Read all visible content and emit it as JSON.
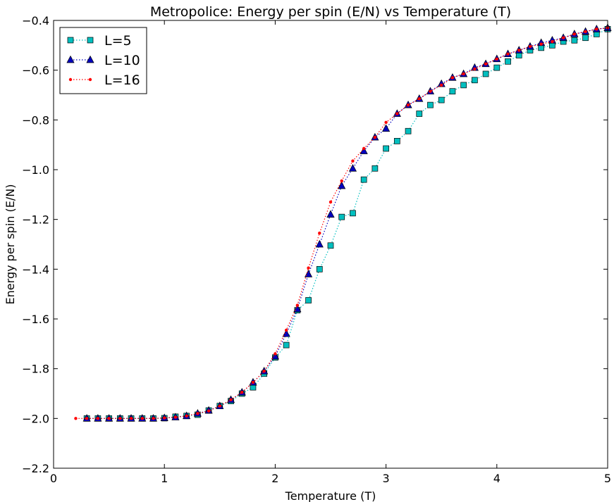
{
  "chart_data": {
    "type": "line",
    "title": "Metropolice: Energy per spin (E/N) vs Temperature (T)",
    "xlabel": "Temperature (T)",
    "ylabel": "Energy per spin (E/N)",
    "xlim": [
      0,
      5
    ],
    "ylim": [
      -2.2,
      -0.4
    ],
    "xticks": [
      0,
      1,
      2,
      3,
      4,
      5
    ],
    "yticks": [
      -2.2,
      -2.0,
      -1.8,
      -1.6,
      -1.4,
      -1.2,
      -1.0,
      -0.8,
      -0.6,
      -0.4
    ],
    "xtick_labels": [
      "0",
      "1",
      "2",
      "3",
      "4",
      "5"
    ],
    "ytick_labels": [
      "−2.2",
      "−2.0",
      "−1.8",
      "−1.6",
      "−1.4",
      "−1.2",
      "−1.0",
      "−0.8",
      "−0.6",
      "−0.4"
    ],
    "grid": false,
    "legend_position": "top-left",
    "series": [
      {
        "name": "L=5",
        "marker": "square",
        "color": "#00bfbf",
        "x": [
          0.3,
          0.4,
          0.5,
          0.6,
          0.7,
          0.8,
          0.9,
          1.0,
          1.1,
          1.2,
          1.3,
          1.4,
          1.5,
          1.6,
          1.7,
          1.8,
          1.9,
          2.0,
          2.1,
          2.2,
          2.3,
          2.4,
          2.5,
          2.6,
          2.7,
          2.8,
          2.9,
          3.0,
          3.1,
          3.2,
          3.3,
          3.4,
          3.5,
          3.6,
          3.7,
          3.8,
          3.9,
          4.0,
          4.1,
          4.2,
          4.3,
          4.4,
          4.5,
          4.6,
          4.7,
          4.8,
          4.9,
          5.0
        ],
        "y": [
          -2.0,
          -2.0,
          -2.0,
          -2.0,
          -2.0,
          -2.0,
          -2.0,
          -1.999,
          -1.993,
          -1.99,
          -1.985,
          -1.968,
          -1.95,
          -1.93,
          -1.9,
          -1.875,
          -1.82,
          -1.755,
          -1.705,
          -1.565,
          -1.525,
          -1.4,
          -1.305,
          -1.19,
          -1.175,
          -1.04,
          -0.995,
          -0.915,
          -0.885,
          -0.845,
          -0.775,
          -0.74,
          -0.72,
          -0.685,
          -0.66,
          -0.64,
          -0.615,
          -0.59,
          -0.565,
          -0.54,
          -0.52,
          -0.51,
          -0.5,
          -0.485,
          -0.48,
          -0.47,
          -0.455,
          -0.435
        ]
      },
      {
        "name": "L=10",
        "marker": "triangle",
        "color": "#0000bf",
        "x": [
          0.3,
          0.4,
          0.5,
          0.6,
          0.7,
          0.8,
          0.9,
          1.0,
          1.1,
          1.2,
          1.3,
          1.4,
          1.5,
          1.6,
          1.7,
          1.8,
          1.9,
          2.0,
          2.1,
          2.2,
          2.3,
          2.4,
          2.5,
          2.6,
          2.7,
          2.8,
          2.9,
          3.0,
          3.1,
          3.2,
          3.3,
          3.4,
          3.5,
          3.6,
          3.7,
          3.8,
          3.9,
          4.0,
          4.1,
          4.2,
          4.3,
          4.4,
          4.5,
          4.6,
          4.7,
          4.8,
          4.9,
          5.0
        ],
        "y": [
          -2.0,
          -2.0,
          -2.0,
          -2.0,
          -2.0,
          -2.0,
          -2.0,
          -1.998,
          -1.995,
          -1.99,
          -1.98,
          -1.968,
          -1.95,
          -1.925,
          -1.895,
          -1.855,
          -1.81,
          -1.75,
          -1.66,
          -1.56,
          -1.42,
          -1.3,
          -1.18,
          -1.065,
          -0.995,
          -0.925,
          -0.87,
          -0.835,
          -0.775,
          -0.74,
          -0.715,
          -0.685,
          -0.655,
          -0.63,
          -0.615,
          -0.59,
          -0.575,
          -0.555,
          -0.535,
          -0.52,
          -0.505,
          -0.49,
          -0.48,
          -0.47,
          -0.455,
          -0.445,
          -0.435,
          -0.43
        ]
      },
      {
        "name": "L=16",
        "marker": "dot",
        "color": "#ff0000",
        "x": [
          0.2,
          0.3,
          0.4,
          0.5,
          0.6,
          0.7,
          0.8,
          0.9,
          1.0,
          1.1,
          1.2,
          1.3,
          1.4,
          1.5,
          1.6,
          1.7,
          1.8,
          1.9,
          2.0,
          2.1,
          2.2,
          2.3,
          2.4,
          2.5,
          2.6,
          2.7,
          2.8,
          2.9,
          3.0,
          3.1,
          3.2,
          3.3,
          3.4,
          3.5,
          3.6,
          3.7,
          3.8,
          3.9,
          4.0,
          4.1,
          4.2,
          4.3,
          4.4,
          4.5,
          4.6,
          4.7,
          4.8,
          4.9,
          5.0
        ],
        "y": [
          -2.0,
          -2.0,
          -2.0,
          -2.0,
          -2.0,
          -2.0,
          -2.0,
          -2.0,
          -1.998,
          -1.995,
          -1.99,
          -1.98,
          -1.97,
          -1.95,
          -1.925,
          -1.895,
          -1.855,
          -1.81,
          -1.74,
          -1.645,
          -1.545,
          -1.395,
          -1.255,
          -1.13,
          -1.045,
          -0.965,
          -0.915,
          -0.87,
          -0.81,
          -0.775,
          -0.74,
          -0.715,
          -0.685,
          -0.66,
          -0.63,
          -0.615,
          -0.595,
          -0.575,
          -0.555,
          -0.535,
          -0.52,
          -0.505,
          -0.495,
          -0.485,
          -0.47,
          -0.455,
          -0.445,
          -0.435,
          -0.43
        ]
      }
    ]
  }
}
